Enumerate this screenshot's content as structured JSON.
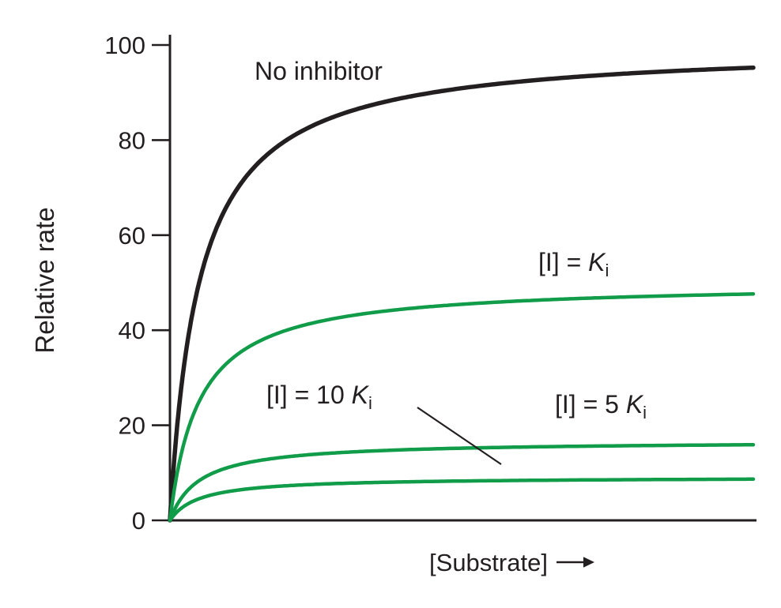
{
  "figure": {
    "background": "#ffffff",
    "axis_color": "#231f20",
    "label_color": "#231f20",
    "inhibitor_curve_color": "#109c49"
  },
  "chart_data": {
    "type": "line",
    "title": "",
    "ylabel": "Relative rate",
    "xlabel": "[Substrate]",
    "x_arrow": "→",
    "ylim": [
      0,
      100
    ],
    "yticks": [
      0,
      20,
      40,
      60,
      80,
      100
    ],
    "xticks": [],
    "x_range_arbitrary_units": [
      0,
      1
    ],
    "curve_model": "michaelis_menten",
    "km_fraction_of_xmax": 0.05,
    "grid": false,
    "legend": "none",
    "series": [
      {
        "name": "No inhibitor",
        "vmax": 100,
        "plateau_shown": 95,
        "color": "#231f20",
        "stroke_width": 5.5,
        "label_parts": [
          {
            "t": "No inhibitor",
            "style": "plain"
          }
        ]
      },
      {
        "name": "[I] = Ki",
        "vmax": 50,
        "plateau_shown": 48,
        "color": "#109c49",
        "stroke_width": 4.5,
        "label_parts": [
          {
            "t": "[I] = ",
            "style": "plain"
          },
          {
            "t": "K",
            "style": "italic"
          },
          {
            "t": "i",
            "style": "sub"
          }
        ]
      },
      {
        "name": "[I] = 5 Ki",
        "vmax": 16.7,
        "plateau_shown": 16,
        "color": "#109c49",
        "stroke_width": 4.5,
        "label_parts": [
          {
            "t": "[I] = 5 ",
            "style": "plain"
          },
          {
            "t": "K",
            "style": "italic"
          },
          {
            "t": "i",
            "style": "sub"
          }
        ]
      },
      {
        "name": "[I] = 10 Ki",
        "vmax": 9.1,
        "plateau_shown": 9,
        "color": "#109c49",
        "stroke_width": 4.5,
        "leader_line": true,
        "label_parts": [
          {
            "t": "[I] = 10 ",
            "style": "plain"
          },
          {
            "t": "K",
            "style": "italic"
          },
          {
            "t": "i",
            "style": "sub"
          }
        ]
      }
    ]
  }
}
